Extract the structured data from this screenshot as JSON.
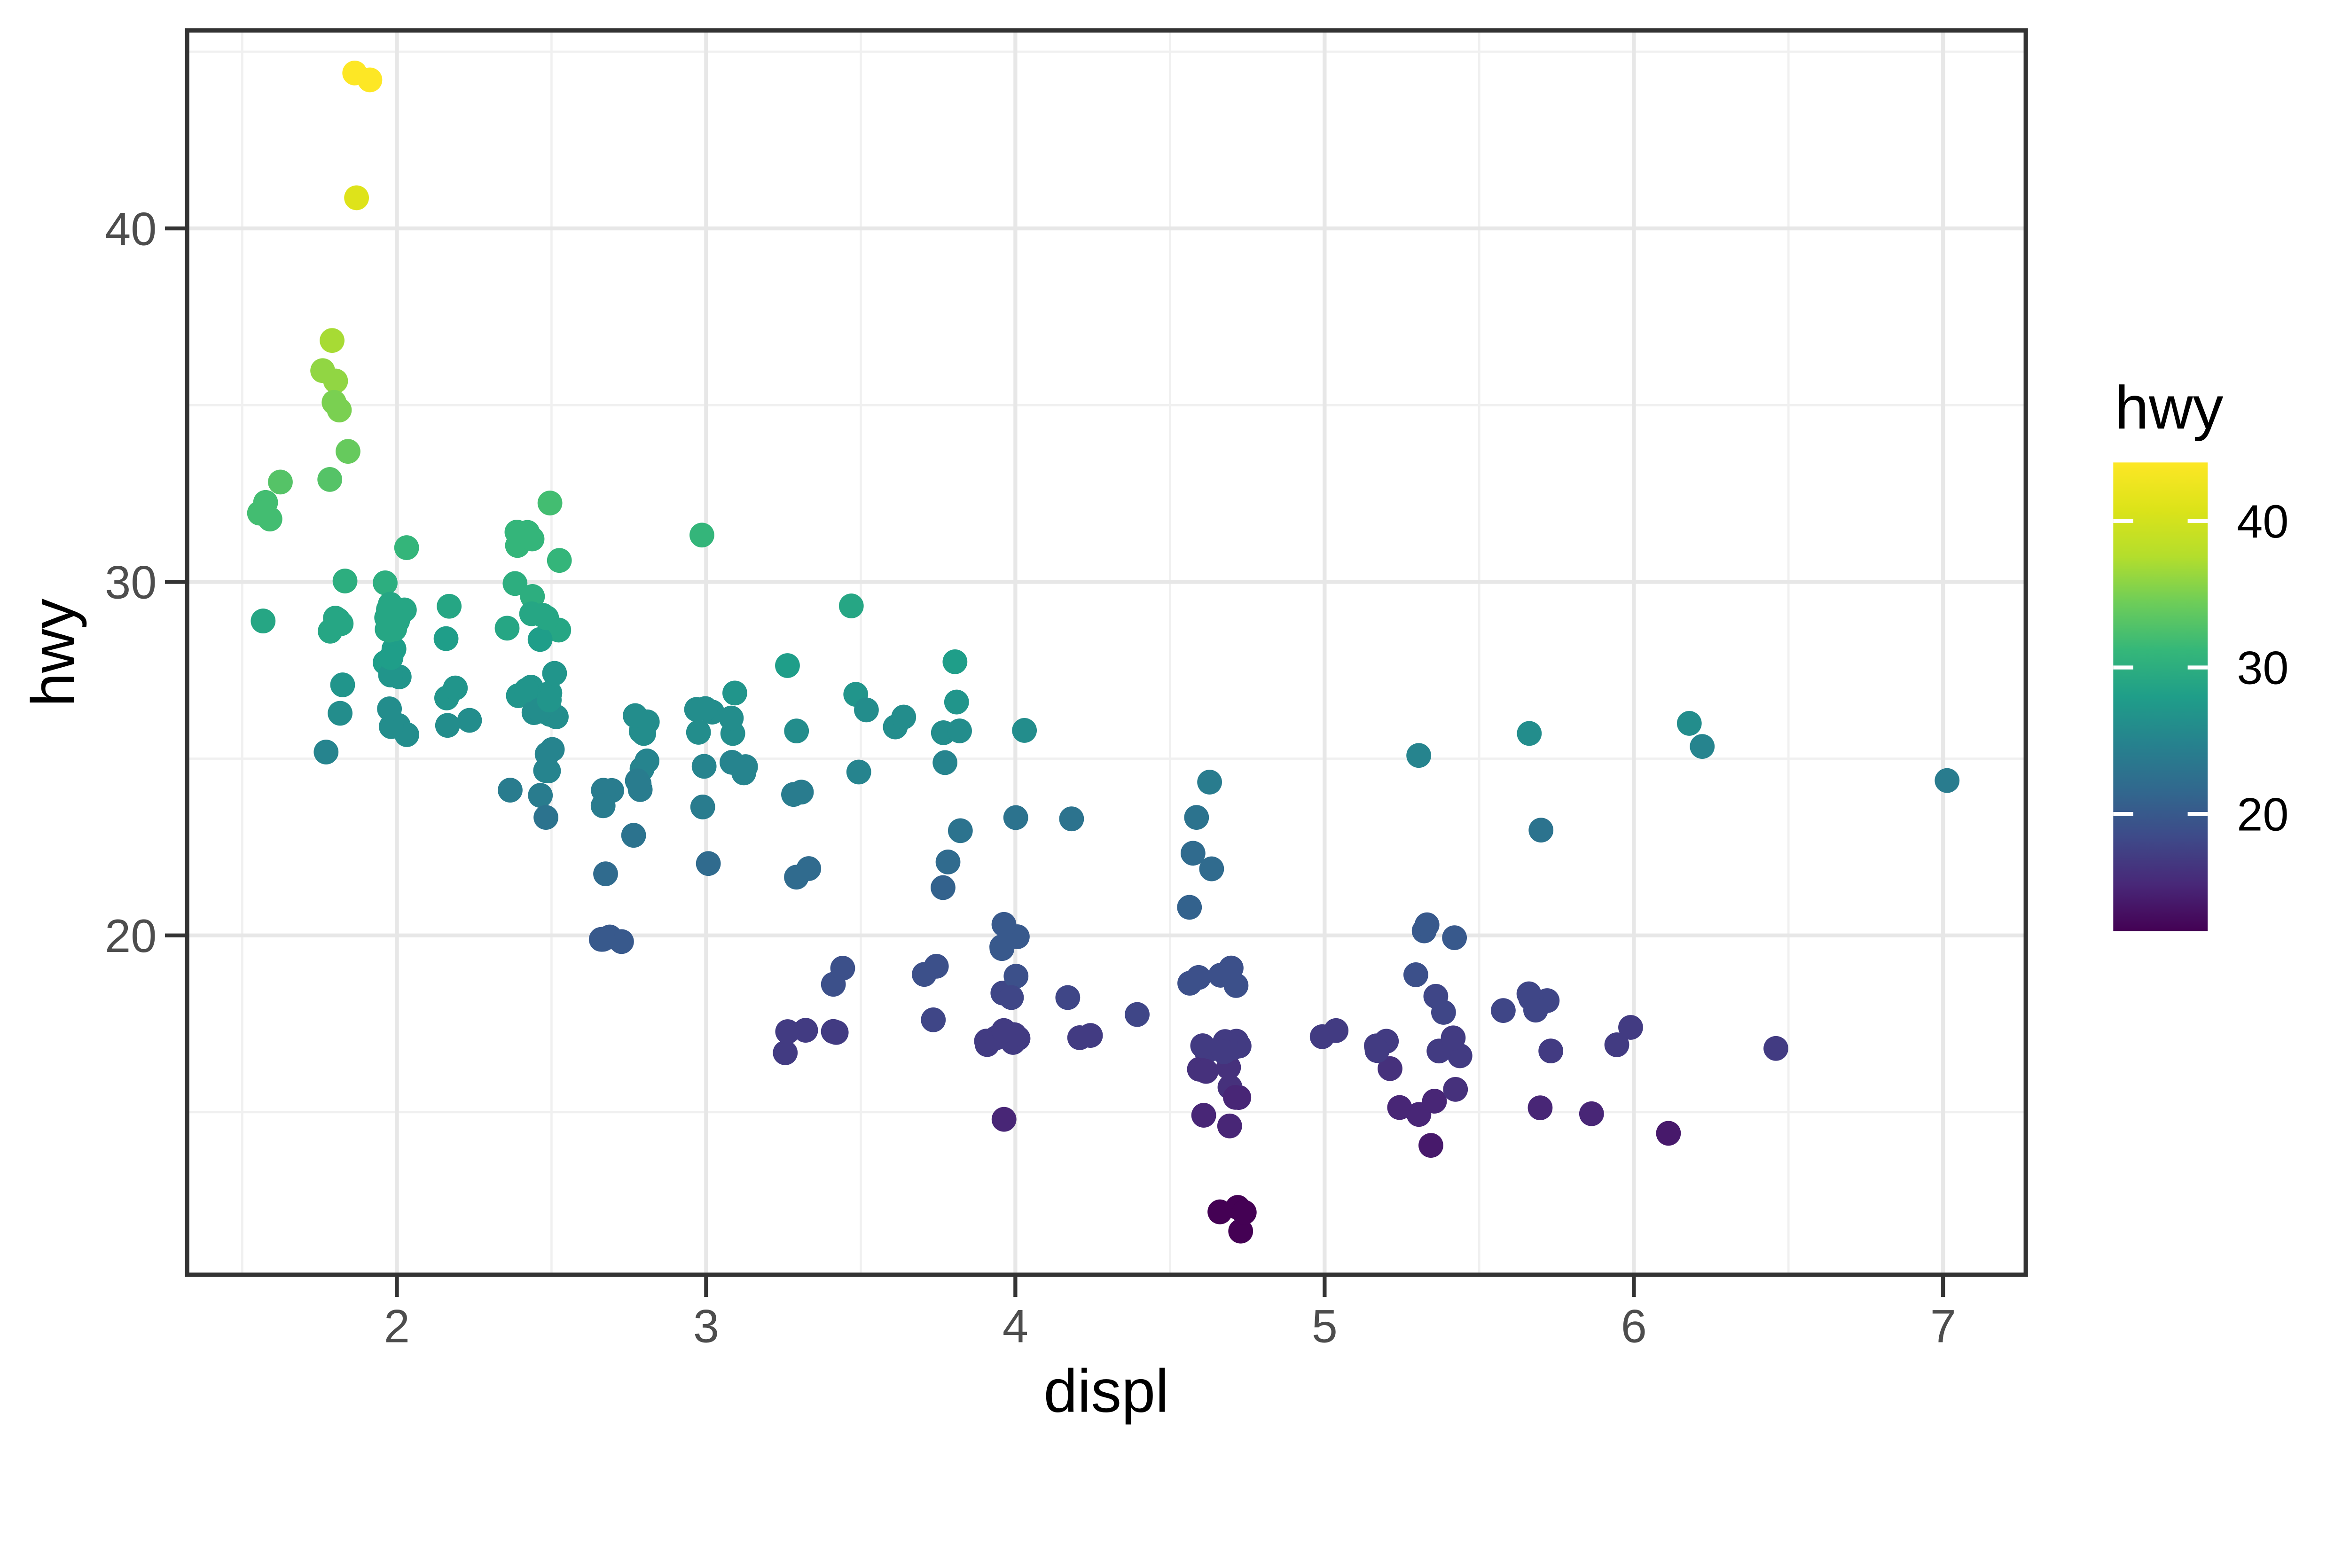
{
  "figure": {
    "background_color": "#ffffff",
    "panel_border_color": "#333333",
    "major_grid_color": "#E7E7E7",
    "minor_grid_color": "#F0F0F0",
    "axis_text_color": "#4D4D4D",
    "axis_title_color": "#000000",
    "tick_mark_color": "#333333"
  },
  "axes": {
    "x": {
      "title": "displ",
      "tick_labels": [
        "2",
        "3",
        "4",
        "5",
        "6",
        "7"
      ]
    },
    "y": {
      "title": "hwy",
      "tick_labels": [
        "20",
        "30",
        "40"
      ]
    }
  },
  "legend": {
    "title": "hwy",
    "tick_labels": [
      "40",
      "30",
      "20"
    ],
    "tick_values": [
      40,
      30,
      20
    ],
    "colorbar_min": 12,
    "colorbar_max": 44,
    "tick_mark_color": "#ffffff"
  },
  "palette": {
    "name": "viridis",
    "stops": [
      [
        0.0,
        "#440154"
      ],
      [
        0.1,
        "#482878"
      ],
      [
        0.2,
        "#3E4A89"
      ],
      [
        0.3,
        "#31688E"
      ],
      [
        0.4,
        "#26828E"
      ],
      [
        0.5,
        "#1F9E89"
      ],
      [
        0.6,
        "#35B779"
      ],
      [
        0.7,
        "#6DCD59"
      ],
      [
        0.8,
        "#B4DE2C"
      ],
      [
        0.9,
        "#DCE319"
      ],
      [
        1.0,
        "#FDE725"
      ]
    ]
  },
  "chart_data": {
    "type": "scatter",
    "title": "",
    "xlabel": "displ",
    "ylabel": "hwy",
    "color_label": "hwy",
    "legend_position": "right",
    "grid": true,
    "x_ticks": [
      2,
      3,
      4,
      5,
      6,
      7
    ],
    "y_ticks": [
      20,
      30,
      40
    ],
    "x_minor_ticks": [
      1.5,
      2.5,
      3.5,
      4.5,
      5.5,
      6.5
    ],
    "y_minor_ticks": [
      15,
      25,
      35,
      45
    ],
    "xlim": [
      1.33,
      7.27
    ],
    "ylim": [
      10.4,
      45.6
    ],
    "color_range": [
      12,
      44
    ],
    "n_points": 234,
    "jitter": {
      "width": 0.045,
      "height": 0.42
    },
    "points": {
      "displ": [
        1.8,
        1.8,
        2,
        2,
        2.8,
        2.8,
        3.1,
        1.8,
        1.8,
        2,
        2,
        2.8,
        2.8,
        3.1,
        3.1,
        2.8,
        3.1,
        4.2,
        5.3,
        5.3,
        5.3,
        5.7,
        6,
        5.7,
        5.7,
        6.2,
        6.2,
        7,
        5.3,
        5.3,
        5.7,
        6.5,
        2.4,
        2.4,
        3.1,
        3.5,
        3.6,
        2.4,
        3,
        3.3,
        3.3,
        3.3,
        3.3,
        3.3,
        3.8,
        3.8,
        3.8,
        4,
        3.7,
        3.7,
        3.9,
        3.9,
        4.7,
        4.7,
        4.7,
        5.2,
        5.2,
        3.9,
        4.7,
        4.7,
        4.7,
        5.2,
        5.7,
        5.9,
        4.7,
        4.7,
        4.7,
        4.7,
        4.7,
        4.7,
        5.2,
        5.2,
        5.7,
        5.9,
        4.6,
        5.4,
        5.4,
        4,
        4,
        4,
        4,
        4.6,
        5,
        4.2,
        4.2,
        4.6,
        4.6,
        4.6,
        5.4,
        5.4,
        3.8,
        3.8,
        4,
        4.6,
        4.6,
        4.6,
        4.6,
        4.6,
        5.4,
        1.6,
        1.6,
        1.6,
        1.6,
        1.6,
        1.8,
        1.8,
        1.8,
        2,
        2.4,
        2.4,
        2.4,
        2.4,
        2.5,
        2.5,
        3.3,
        2,
        2,
        2,
        2,
        2.7,
        2.7,
        2.7,
        3,
        3.7,
        4,
        4.7,
        4.7,
        4.7,
        5.7,
        6.1,
        4,
        4.2,
        4.4,
        4.6,
        5.4,
        5.4,
        5.4,
        4,
        4,
        4.6,
        5,
        2.4,
        2.4,
        2.5,
        2.5,
        3.5,
        3.5,
        3,
        3,
        3.5,
        3.3,
        3.3,
        4,
        5.6,
        3.1,
        3.8,
        3.8,
        3.8,
        5.3,
        2.5,
        2.5,
        2.5,
        2.5,
        2.5,
        2.5,
        2.2,
        2.2,
        2.5,
        2.5,
        2.5,
        2.5,
        2.5,
        2.5,
        2.7,
        2.7,
        3.4,
        3.4,
        4,
        4.7,
        2.2,
        2.2,
        2.4,
        2.4,
        3,
        3,
        2.2,
        2.2,
        2.4,
        2.4,
        3,
        3,
        3.3,
        1.8,
        1.8,
        1.8,
        1.8,
        1.8,
        1.8,
        4.7,
        5.7,
        2.7,
        2.7,
        2.7,
        3.4,
        3.4,
        4,
        4,
        2,
        2,
        2,
        2,
        2.8,
        1.9,
        2,
        2,
        2,
        2,
        2.5,
        2.5,
        2.8,
        2.8,
        1.9,
        1.9,
        2,
        2,
        2.5,
        2.5,
        1.8,
        1.8,
        2,
        2,
        2.8,
        2.8,
        3.6
      ],
      "hwy": [
        29,
        29,
        31,
        30,
        26,
        26,
        27,
        26,
        25,
        28,
        27,
        25,
        25,
        25,
        25,
        24,
        25,
        23,
        20,
        15,
        20,
        17,
        17,
        26,
        23,
        26,
        25,
        24,
        19,
        14,
        15,
        17,
        27,
        30,
        26,
        29,
        26,
        24,
        24,
        22,
        22,
        24,
        24,
        17,
        22,
        21,
        23,
        23,
        19,
        18,
        17,
        17,
        19,
        19,
        12,
        17,
        15,
        17,
        17,
        12,
        17,
        16,
        18,
        15,
        16,
        12,
        15,
        16,
        17,
        15,
        17,
        17,
        18,
        17,
        17,
        17,
        18,
        17,
        17,
        18,
        17,
        19,
        17,
        17,
        17,
        16,
        16,
        17,
        15,
        17,
        26,
        25,
        26,
        24,
        21,
        22,
        23,
        22,
        20,
        33,
        32,
        32,
        29,
        32,
        34,
        36,
        36,
        29,
        26,
        27,
        30,
        31,
        26,
        26,
        28,
        26,
        29,
        28,
        27,
        24,
        24,
        24,
        22,
        19,
        20,
        17,
        12,
        19,
        18,
        14,
        15,
        18,
        18,
        15,
        17,
        16,
        18,
        17,
        19,
        19,
        17,
        29,
        27,
        31,
        32,
        27,
        26,
        26,
        25,
        25,
        17,
        17,
        20,
        18,
        26,
        26,
        27,
        28,
        25,
        25,
        24,
        27,
        25,
        26,
        23,
        26,
        26,
        26,
        26,
        25,
        27,
        25,
        27,
        20,
        20,
        19,
        17,
        20,
        17,
        29,
        27,
        31,
        31,
        26,
        26,
        28,
        27,
        29,
        31,
        31,
        26,
        26,
        27,
        30,
        33,
        35,
        37,
        35,
        15,
        18,
        20,
        20,
        22,
        17,
        19,
        18,
        20,
        29,
        26,
        29,
        29,
        24,
        44,
        29,
        26,
        29,
        29,
        29,
        29,
        23,
        24,
        44,
        41,
        29,
        26,
        28,
        29,
        29,
        29,
        28,
        29,
        26,
        26,
        26
      ]
    }
  }
}
